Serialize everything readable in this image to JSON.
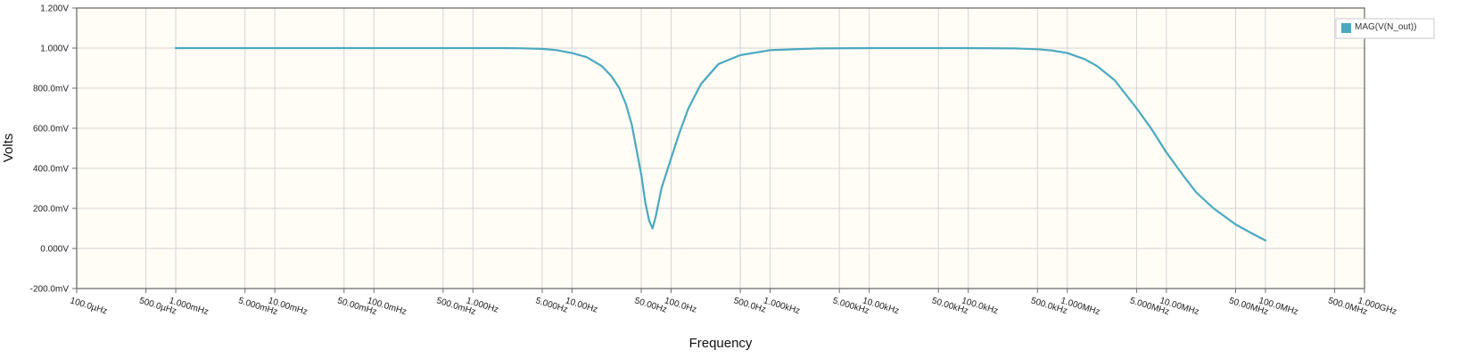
{
  "chart_data": {
    "type": "line",
    "title": "",
    "xlabel": "Frequency",
    "ylabel": "Volts",
    "x_scale": "log",
    "xlim": [
      0.0001,
      1000000000
    ],
    "ylim": [
      -0.2,
      1.2
    ],
    "grid": true,
    "legend_position": "top-right",
    "plot_background": "#fffdf6",
    "line_color": "#4aa8c0",
    "x_ticks": [
      {
        "value": 0.0001,
        "label": "100.0µHz"
      },
      {
        "value": 0.0005,
        "label": "500.0µHz"
      },
      {
        "value": 0.001,
        "label": "1.000mHz"
      },
      {
        "value": 0.005,
        "label": "5.000mHz"
      },
      {
        "value": 0.01,
        "label": "10.00mHz"
      },
      {
        "value": 0.05,
        "label": "50.00mHz"
      },
      {
        "value": 0.1,
        "label": "100.0mHz"
      },
      {
        "value": 0.5,
        "label": "500.0mHz"
      },
      {
        "value": 1,
        "label": "1.000Hz"
      },
      {
        "value": 5,
        "label": "5.000Hz"
      },
      {
        "value": 10,
        "label": "10.00Hz"
      },
      {
        "value": 50,
        "label": "50.00Hz"
      },
      {
        "value": 100,
        "label": "100.0Hz"
      },
      {
        "value": 500,
        "label": "500.0Hz"
      },
      {
        "value": 1000,
        "label": "1.000kHz"
      },
      {
        "value": 5000,
        "label": "5.000kHz"
      },
      {
        "value": 10000,
        "label": "10.00kHz"
      },
      {
        "value": 50000,
        "label": "50.00kHz"
      },
      {
        "value": 100000,
        "label": "100.0kHz"
      },
      {
        "value": 500000,
        "label": "500.0kHz"
      },
      {
        "value": 1000000,
        "label": "1.000MHz"
      },
      {
        "value": 5000000,
        "label": "5.000MHz"
      },
      {
        "value": 10000000,
        "label": "10.00MHz"
      },
      {
        "value": 50000000,
        "label": "50.00MHz"
      },
      {
        "value": 100000000,
        "label": "100.0MHz"
      },
      {
        "value": 500000000,
        "label": "500.0MHz"
      },
      {
        "value": 1000000000,
        "label": "1.000GHz"
      }
    ],
    "y_ticks": [
      {
        "value": 1.2,
        "label": "1.200V"
      },
      {
        "value": 1.0,
        "label": "1.000V"
      },
      {
        "value": 0.8,
        "label": "800.0mV"
      },
      {
        "value": 0.6,
        "label": "600.0mV"
      },
      {
        "value": 0.4,
        "label": "400.0mV"
      },
      {
        "value": 0.2,
        "label": "200.0mV"
      },
      {
        "value": 0.0,
        "label": "0.000V"
      },
      {
        "value": -0.2,
        "label": "-200.0mV"
      }
    ],
    "series": [
      {
        "name": "MAG(V(N_out))",
        "x": [
          0.001,
          0.01,
          0.1,
          1,
          2,
          3,
          5,
          7,
          10,
          14,
          20,
          25,
          30,
          35,
          40,
          45,
          50,
          55,
          60,
          65,
          70,
          80,
          100,
          120,
          150,
          200,
          300,
          500,
          1000,
          3000,
          10000,
          100000,
          300000,
          500000,
          700000,
          1000000,
          1500000,
          2000000,
          3000000,
          5000000,
          7000000,
          10000000,
          15000000,
          20000000,
          30000000,
          50000000,
          70000000,
          100000000
        ],
        "values": [
          1.0,
          1.0,
          1.0,
          1.0,
          1.0,
          0.999,
          0.996,
          0.99,
          0.975,
          0.955,
          0.91,
          0.86,
          0.8,
          0.72,
          0.62,
          0.49,
          0.37,
          0.23,
          0.14,
          0.1,
          0.16,
          0.3,
          0.45,
          0.57,
          0.7,
          0.82,
          0.92,
          0.965,
          0.99,
          0.998,
          1.0,
          1.0,
          0.998,
          0.994,
          0.988,
          0.975,
          0.945,
          0.91,
          0.84,
          0.7,
          0.6,
          0.48,
          0.36,
          0.28,
          0.2,
          0.12,
          0.08,
          0.04
        ]
      }
    ]
  }
}
